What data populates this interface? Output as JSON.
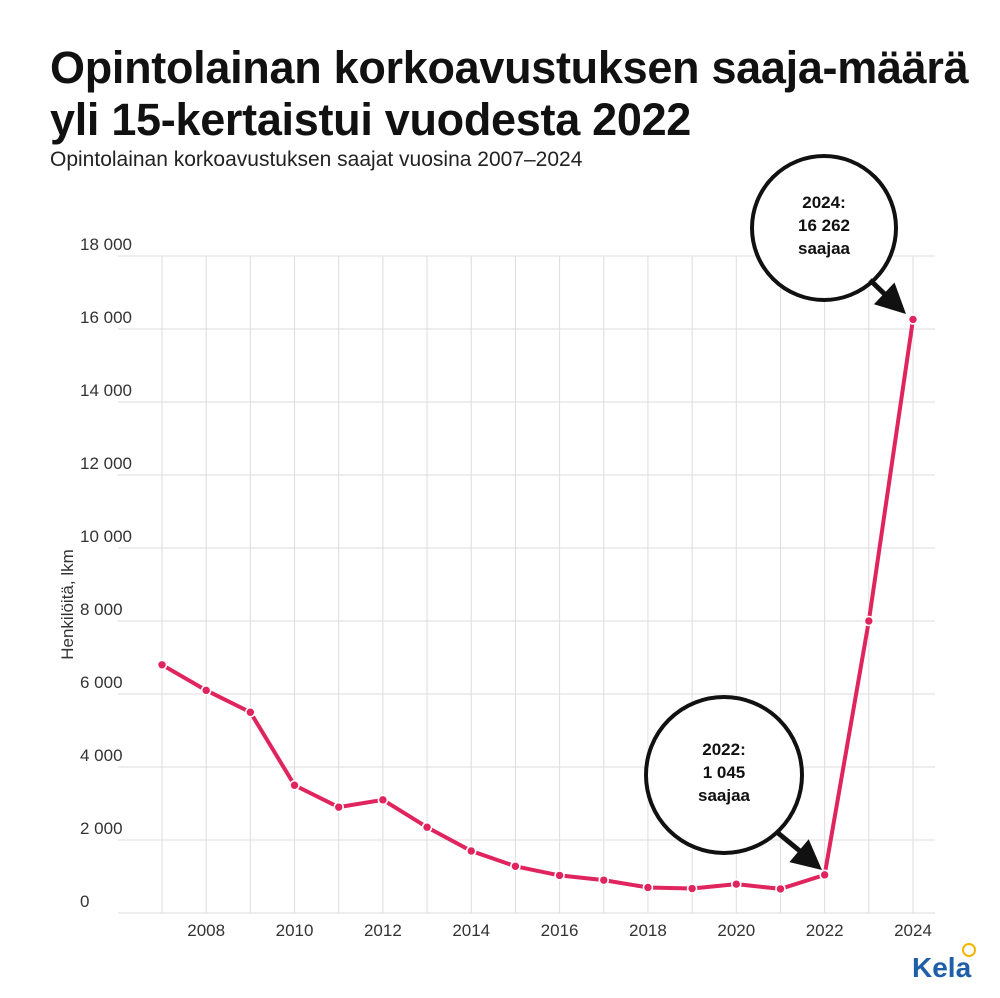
{
  "header": {
    "title": "Opintolainan korkoavustuksen saaja-määrä yli 15-kertaistui vuodesta 2022",
    "subtitle": "Opintolainan korkoavustuksen saajat vuosina 2007–2024"
  },
  "logo": {
    "text": "Kela",
    "accent_color": "#f4b400",
    "text_color": "#1f5fa8"
  },
  "colors": {
    "line": "#e0245e",
    "grid": "#dddddd",
    "callout": "#111111"
  },
  "chart_data": {
    "type": "line",
    "title": "Opintolainan korkoavustuksen saaja-määrä yli 15-kertaistui vuodesta 2022",
    "subtitle": "Opintolainan korkoavustuksen saajat vuosina 2007–2024",
    "ylabel": "Henkilöitä, lkm",
    "xlabel": "",
    "ylim": [
      0,
      18000
    ],
    "yticks": [
      0,
      2000,
      4000,
      6000,
      8000,
      10000,
      12000,
      14000,
      16000,
      18000
    ],
    "ytick_labels": [
      "0",
      "2 000",
      "4 000",
      "6 000",
      "8 000",
      "10 000",
      "12 000",
      "14 000",
      "16 000",
      "18 000"
    ],
    "xlim": [
      2007,
      2024
    ],
    "xticks": [
      2008,
      2010,
      2012,
      2014,
      2016,
      2018,
      2020,
      2022,
      2024
    ],
    "xtick_labels": [
      "2008",
      "2010",
      "2012",
      "2014",
      "2016",
      "2018",
      "2020",
      "2022",
      "2024"
    ],
    "grid": true,
    "series": [
      {
        "x": [
          2007,
          2008,
          2009,
          2010,
          2011,
          2012,
          2013,
          2014,
          2015,
          2016,
          2017,
          2018,
          2019,
          2020,
          2021,
          2022,
          2023,
          2024
        ],
        "values": [
          6800,
          6100,
          5500,
          3500,
          2900,
          3100,
          2350,
          1700,
          1280,
          1030,
          900,
          700,
          670,
          790,
          660,
          1045,
          8000,
          16262
        ]
      }
    ],
    "annotations": [
      {
        "x": 2022,
        "line1": "2022:",
        "line2": "1 045",
        "line3": "saajaa"
      },
      {
        "x": 2024,
        "line1": "2024:",
        "line2": "16 262",
        "line3": "saajaa"
      }
    ]
  }
}
